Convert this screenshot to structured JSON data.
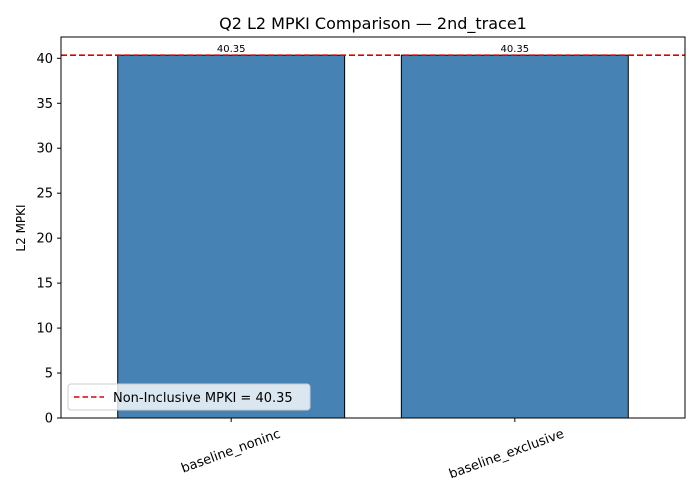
{
  "chart_data": {
    "type": "bar",
    "title": "Q2 L2 MPKI Comparison — 2nd_trace1",
    "xlabel": "",
    "ylabel": "L2 MPKI",
    "categories": [
      "baseline_noninc",
      "baseline_exclusive"
    ],
    "values": [
      40.35,
      40.35
    ],
    "value_labels": [
      "40.35",
      "40.35"
    ],
    "ylim": [
      0,
      42.37
    ],
    "yticks": [
      0,
      5,
      10,
      15,
      20,
      25,
      30,
      35,
      40
    ],
    "ytick_labels": [
      "0",
      "5",
      "10",
      "15",
      "20",
      "25",
      "30",
      "35",
      "40"
    ],
    "reference_line": {
      "value": 40.35,
      "label": "Non-Inclusive MPKI = 40.35",
      "color": "#e00000",
      "style": "dashed"
    },
    "legend_position": "lower-left",
    "grid": false,
    "colors": {
      "bar": "#4682b4",
      "bar_edge": "#000000",
      "reference_line": "#e00000"
    }
  }
}
